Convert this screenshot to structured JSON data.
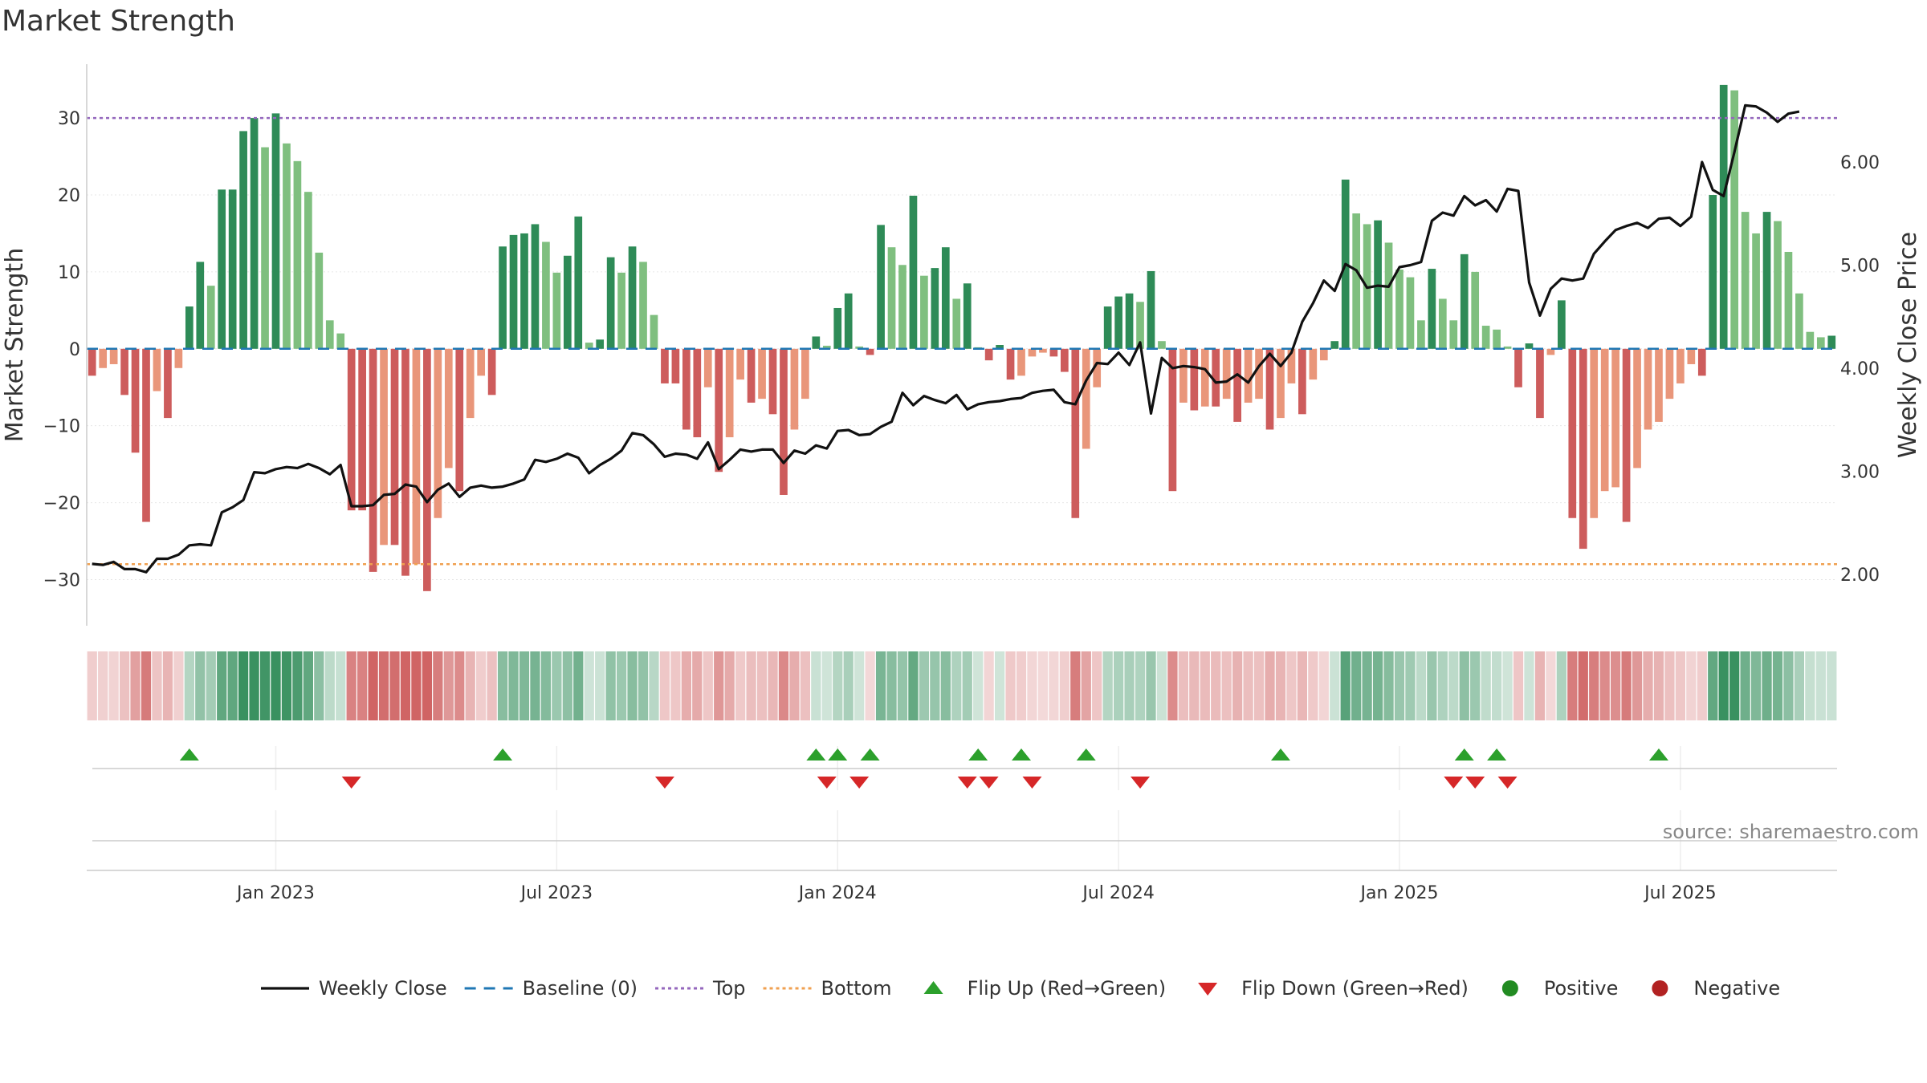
{
  "title": "Market Strength",
  "source": "source: sharemaestro.com",
  "colors": {
    "pos_strong": "#2e8b57",
    "pos_light": "#7fbf7f",
    "neg_strong": "#cd5c5c",
    "neg_light": "#e9967a",
    "close": "#111111",
    "baseline": "#1f77b4",
    "top": "#9467bd",
    "bottom": "#f0a050",
    "flip_up": "#2ca02c",
    "flip_down": "#d62728",
    "positive": "#228B22",
    "negative": "#B22222"
  },
  "chart_data": {
    "type": "bar",
    "ylabel": "Market Strength",
    "y2label": "Weekly Close Price",
    "ylim": [
      -36,
      37
    ],
    "y2lim": [
      1.5,
      6.95
    ],
    "yticks": [
      30,
      20,
      10,
      0,
      -10,
      -20,
      -30
    ],
    "ytick_labels": [
      "30",
      "20",
      "10",
      "0",
      "−10",
      "−20",
      "−30"
    ],
    "y2ticks": [
      6.0,
      5.0,
      4.0,
      3.0,
      2.0
    ],
    "y2tick_labels": [
      "6.00",
      "5.00",
      "4.00",
      "3.00",
      "2.00"
    ],
    "xtick_weeks": [
      17,
      43,
      69,
      95,
      121,
      147
    ],
    "xtick_labels": [
      "Jan 2023",
      "Jul 2023",
      "Jan 2024",
      "Jul 2024",
      "Jan 2025",
      "Jul 2025"
    ],
    "top_line": 30,
    "bottom_line": -28,
    "strength": [
      -3.5,
      -2.5,
      -2,
      -6,
      -13.5,
      -22.5,
      -5.5,
      -9,
      -2.5,
      5.5,
      11.3,
      8.2,
      20.7,
      20.7,
      28.3,
      30,
      26.2,
      30.6,
      26.7,
      24.4,
      20.4,
      12.5,
      3.7,
      2,
      -21,
      -21,
      -29,
      -25.5,
      -25.5,
      -29.5,
      -28,
      -31.5,
      -22,
      -15.5,
      -18.5,
      -9,
      -3.5,
      -6,
      13.3,
      14.8,
      15,
      16.2,
      13.9,
      9.9,
      12.1,
      17.2,
      0.8,
      1.2,
      11.9,
      9.9,
      13.3,
      11.3,
      4.4,
      -4.5,
      -4.5,
      -10.5,
      -11.5,
      -5,
      -16,
      -11.5,
      -4,
      -7,
      -6.5,
      -8.5,
      -19,
      -10.5,
      -6.5,
      1.6,
      0.4,
      5.3,
      7.2,
      0.3,
      -0.8,
      16.1,
      13.2,
      10.9,
      19.9,
      9.5,
      10.5,
      13.2,
      6.5,
      8.5,
      0.2,
      -1.5,
      0.5,
      -4,
      -3.5,
      -1,
      -0.5,
      -1,
      -3,
      -22,
      -13,
      -5,
      5.5,
      6.8,
      7.2,
      6.1,
      10.1,
      1,
      -18.5,
      -7,
      -8,
      -7.5,
      -7.5,
      -6.5,
      -9.5,
      -7,
      -6.5,
      -10.5,
      -9,
      -4.5,
      -8.5,
      -4,
      -1.5,
      1,
      22,
      17.6,
      16.2,
      16.7,
      13.8,
      10.3,
      9.3,
      3.7,
      10.4,
      6.5,
      3.7,
      12.3,
      10,
      3,
      2.5,
      0.3,
      -5,
      0.7,
      -9,
      -0.8,
      6.3,
      -22,
      -26,
      -22,
      -18.5,
      -18,
      -22.5,
      -15.5,
      -10.5,
      -9.5,
      -6.5,
      -4.5,
      -2,
      -3.5,
      20,
      34.3,
      33.6,
      17.8,
      15,
      17.8,
      16.6,
      12.6,
      7.2,
      2.2,
      1.5,
      1.7
    ],
    "close": [
      2.1,
      2.09,
      2.12,
      2.05,
      2.05,
      2.02,
      2.15,
      2.15,
      2.19,
      2.28,
      2.29,
      2.28,
      2.6,
      2.65,
      2.72,
      2.99,
      2.98,
      3.02,
      3.04,
      3.03,
      3.07,
      3.03,
      2.97,
      3.06,
      2.66,
      2.66,
      2.67,
      2.77,
      2.78,
      2.87,
      2.85,
      2.7,
      2.82,
      2.88,
      2.75,
      2.84,
      2.86,
      2.84,
      2.85,
      2.88,
      2.92,
      3.11,
      3.09,
      3.12,
      3.17,
      3.13,
      2.98,
      3.06,
      3.12,
      3.2,
      3.37,
      3.35,
      3.26,
      3.14,
      3.17,
      3.16,
      3.12,
      3.28,
      3.02,
      3.11,
      3.21,
      3.19,
      3.21,
      3.21,
      3.08,
      3.2,
      3.17,
      3.25,
      3.22,
      3.39,
      3.4,
      3.35,
      3.36,
      3.43,
      3.48,
      3.76,
      3.64,
      3.73,
      3.69,
      3.66,
      3.74,
      3.6,
      3.65,
      3.67,
      3.68,
      3.7,
      3.71,
      3.76,
      3.78,
      3.79,
      3.67,
      3.65,
      3.88,
      4.05,
      4.04,
      4.15,
      4.03,
      4.25,
      3.56,
      4.1,
      4.0,
      4.02,
      4.01,
      3.99,
      3.86,
      3.87,
      3.94,
      3.86,
      4.02,
      4.14,
      4.02,
      4.15,
      4.45,
      4.63,
      4.85,
      4.75,
      5.01,
      4.95,
      4.78,
      4.8,
      4.79,
      4.98,
      5.0,
      5.03,
      5.43,
      5.51,
      5.48,
      5.67,
      5.58,
      5.63,
      5.52,
      5.74,
      5.72,
      4.83,
      4.51,
      4.77,
      4.87,
      4.85,
      4.87,
      5.11,
      5.23,
      5.34,
      5.38,
      5.41,
      5.36,
      5.45,
      5.46,
      5.38,
      5.47,
      6.0,
      5.73,
      5.67,
      6.1,
      6.55,
      6.54,
      6.48,
      6.39,
      6.47,
      6.49
    ],
    "flip_up_weeks": [
      9,
      38,
      67,
      69,
      72,
      82,
      86,
      92,
      110,
      127,
      130,
      145
    ],
    "flip_down_weeks": [
      24,
      53,
      68,
      71,
      81,
      83,
      87,
      97,
      126,
      128,
      131
    ]
  },
  "legend": [
    {
      "key": "close",
      "label": "Weekly Close"
    },
    {
      "key": "baseline",
      "label": "Baseline (0)"
    },
    {
      "key": "top",
      "label": "Top"
    },
    {
      "key": "bottom",
      "label": "Bottom"
    },
    {
      "key": "flip_up",
      "label": "Flip Up (Red→Green)"
    },
    {
      "key": "flip_down",
      "label": "Flip Down (Green→Red)"
    },
    {
      "key": "positive",
      "label": "Positive"
    },
    {
      "key": "negative",
      "label": "Negative"
    }
  ]
}
